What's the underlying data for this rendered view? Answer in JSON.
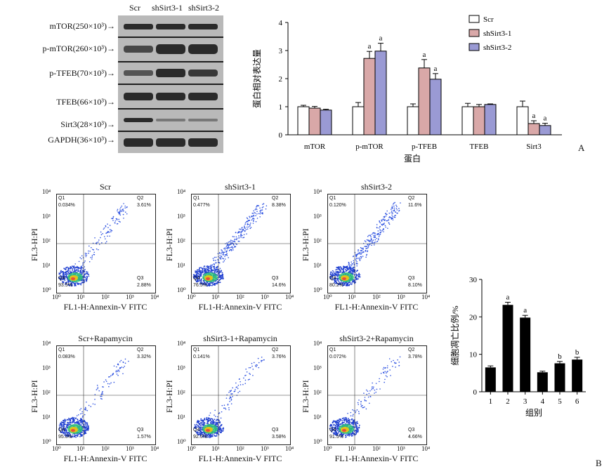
{
  "western_blot": {
    "lanes": [
      "Scr",
      "shSirt3-1",
      "shSirt3-2"
    ],
    "proteins": [
      "mTOR(250×10³)→",
      "p-mTOR(260×10³)→",
      "p-TFEB(70×10³)→",
      "TFEB(66×10³)→",
      "Sirt3(28×10³)→",
      "GAPDH(36×10³)→"
    ]
  },
  "panel_labels": {
    "a": "A",
    "b": "B"
  },
  "chart_data": [
    {
      "type": "bar",
      "title": "",
      "xlabel": "蛋白",
      "ylabel": "蛋白相对表达量",
      "ylim": [
        0,
        4
      ],
      "yticks": [
        "0",
        "1",
        "2",
        "3",
        "4"
      ],
      "categories": [
        "mTOR",
        "p-mTOR",
        "p-TFEB",
        "TFEB",
        "Sirt3"
      ],
      "legend_position": "top-right",
      "series": [
        {
          "name": "Scr",
          "color": "#ffffff",
          "values": [
            1.0,
            1.0,
            1.0,
            1.0,
            1.0
          ],
          "errors": [
            0.05,
            0.15,
            0.1,
            0.12,
            0.2
          ]
        },
        {
          "name": "shSirt3-1",
          "color": "#d9a8a8",
          "values": [
            0.95,
            2.72,
            2.38,
            1.0,
            0.4
          ],
          "errors": [
            0.06,
            0.25,
            0.3,
            0.08,
            0.1
          ]
        },
        {
          "name": "shSirt3-2",
          "color": "#9a9ad4",
          "values": [
            0.88,
            2.98,
            1.98,
            1.08,
            0.33
          ],
          "errors": [
            0.03,
            0.28,
            0.2,
            0.02,
            0.08
          ]
        }
      ],
      "annotations": [
        {
          "category": "p-mTOR",
          "series": "shSirt3-1",
          "text": "a"
        },
        {
          "category": "p-mTOR",
          "series": "shSirt3-2",
          "text": "a"
        },
        {
          "category": "p-TFEB",
          "series": "shSirt3-1",
          "text": "a"
        },
        {
          "category": "p-TFEB",
          "series": "shSirt3-2",
          "text": "a"
        },
        {
          "category": "Sirt3",
          "series": "shSirt3-1",
          "text": "a"
        },
        {
          "category": "Sirt3",
          "series": "shSirt3-2",
          "text": "a"
        }
      ]
    },
    {
      "type": "bar",
      "title": "",
      "xlabel": "组别",
      "ylabel": "细胞凋亡比例/%",
      "ylim": [
        0,
        30
      ],
      "yticks": [
        "0",
        "10",
        "20",
        "30"
      ],
      "categories": [
        "1",
        "2",
        "3",
        "4",
        "5",
        "6"
      ],
      "values": [
        6.5,
        23.2,
        19.8,
        5.2,
        7.6,
        8.6
      ],
      "errors": [
        0.4,
        0.7,
        0.6,
        0.3,
        0.5,
        0.6
      ],
      "annotations": [
        "",
        "a",
        "a",
        "",
        "b",
        "b"
      ],
      "bar_color": "#000000"
    }
  ],
  "flow": {
    "xlabel": "FL1-H:Annexin-V FITC",
    "ylabel": "FL3-H:PI",
    "x_ticks": [
      "10⁰",
      "10¹",
      "10²",
      "10³",
      "10⁴"
    ],
    "y_ticks": [
      "10⁰",
      "10¹",
      "10²",
      "10³",
      "10⁴"
    ],
    "panels": [
      {
        "title": "Scr",
        "q1": "0.034%",
        "q2": "3.61%",
        "q3": "2.88%",
        "q4": "93.5%"
      },
      {
        "title": "shSirt3-1",
        "q1": "0.477%",
        "q2": "8.38%",
        "q3": "14.6%",
        "q4": "76.5%"
      },
      {
        "title": "shSirt3-2",
        "q1": "0.120%",
        "q2": "11.6%",
        "q3": "8.10%",
        "q4": "80.2%"
      },
      {
        "title": "Scr+Rapamycin",
        "q1": "0.083%",
        "q2": "3.32%",
        "q3": "1.57%",
        "q4": "95.0%"
      },
      {
        "title": "shSirt3-1+Rapamycin",
        "q1": "0.141%",
        "q2": "3.76%",
        "q3": "3.58%",
        "q4": "92.5%"
      },
      {
        "title": "shSirt3-2+Rapamycin",
        "q1": "0.072%",
        "q2": "3.78%",
        "q3": "4.66%",
        "q4": "91.5%"
      }
    ]
  }
}
